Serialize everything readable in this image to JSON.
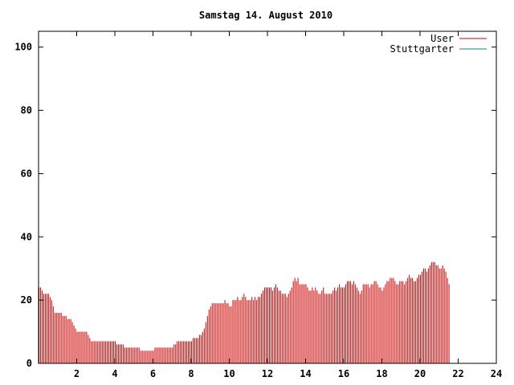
{
  "chart_data": {
    "type": "bar",
    "title": "Samstag 14. August 2010",
    "xlabel": "",
    "ylabel": "",
    "xlim": [
      0,
      24
    ],
    "ylim": [
      0,
      105
    ],
    "xticks": [
      2,
      4,
      6,
      8,
      10,
      12,
      14,
      16,
      18,
      20,
      22,
      24
    ],
    "yticks": [
      0,
      20,
      40,
      60,
      80,
      100
    ],
    "grid": false,
    "legend_position": "top-right",
    "series": [
      {
        "name": "User",
        "color": "#cc0000",
        "samples_per_hour": 12,
        "values": [
          24,
          24,
          23,
          22,
          22,
          22,
          22,
          21,
          20,
          18,
          16,
          16,
          16,
          16,
          16,
          15,
          15,
          15,
          14,
          14,
          14,
          13,
          12,
          11,
          10,
          10,
          10,
          10,
          10,
          10,
          10,
          9,
          8,
          7,
          7,
          7,
          7,
          7,
          7,
          7,
          7,
          7,
          7,
          7,
          7,
          7,
          7,
          7,
          7,
          6,
          6,
          6,
          6,
          6,
          5,
          5,
          5,
          5,
          5,
          5,
          5,
          5,
          5,
          5,
          4,
          4,
          4,
          4,
          4,
          4,
          4,
          4,
          4,
          5,
          5,
          5,
          5,
          5,
          5,
          5,
          5,
          5,
          5,
          5,
          5,
          6,
          6,
          7,
          7,
          7,
          7,
          7,
          7,
          7,
          7,
          7,
          7,
          8,
          8,
          8,
          8,
          9,
          9,
          10,
          11,
          13,
          15,
          17,
          18,
          19,
          19,
          19,
          19,
          19,
          19,
          19,
          19,
          20,
          19,
          19,
          18,
          18,
          20,
          20,
          20,
          21,
          20,
          20,
          21,
          22,
          21,
          20,
          20,
          20,
          21,
          20,
          21,
          20,
          21,
          21,
          22,
          23,
          24,
          24,
          24,
          24,
          24,
          23,
          24,
          25,
          24,
          23,
          23,
          22,
          22,
          22,
          21,
          22,
          23,
          24,
          26,
          27,
          26,
          27,
          25,
          25,
          25,
          25,
          25,
          24,
          23,
          23,
          24,
          23,
          24,
          23,
          22,
          22,
          23,
          24,
          22,
          22,
          22,
          22,
          22,
          23,
          24,
          23,
          24,
          25,
          24,
          24,
          24,
          25,
          26,
          26,
          26,
          25,
          26,
          25,
          24,
          23,
          22,
          23,
          25,
          25,
          25,
          25,
          24,
          25,
          25,
          26,
          26,
          25,
          24,
          24,
          23,
          24,
          25,
          26,
          26,
          27,
          27,
          27,
          26,
          25,
          25,
          26,
          26,
          26,
          25,
          26,
          27,
          28,
          27,
          27,
          26,
          26,
          27,
          28,
          28,
          29,
          30,
          30,
          29,
          30,
          31,
          32,
          32,
          32,
          31,
          31,
          30,
          30,
          31,
          30,
          29,
          27,
          25
        ]
      },
      {
        "name": "Stuttgarter",
        "color": "#008b8b",
        "values": []
      }
    ]
  }
}
